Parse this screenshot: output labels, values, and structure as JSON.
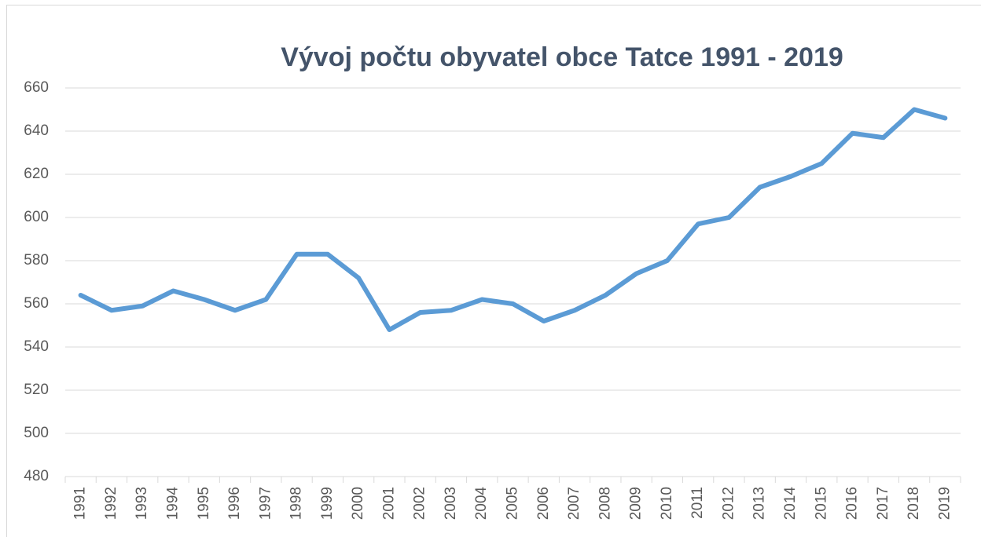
{
  "chart_data": {
    "type": "line",
    "title": "Vývoj počtu obyvatel obce Tatce 1991 - 2019",
    "categories": [
      "1991",
      "1992",
      "1993",
      "1994",
      "1995",
      "1996",
      "1997",
      "1998",
      "1999",
      "2000",
      "2001",
      "2002",
      "2003",
      "2004",
      "2005",
      "2006",
      "2007",
      "2008",
      "2009",
      "2010",
      "2011",
      "2012",
      "2013",
      "2014",
      "2015",
      "2016",
      "2017",
      "2018",
      "2019"
    ],
    "values": [
      564,
      557,
      559,
      566,
      562,
      557,
      562,
      583,
      583,
      572,
      548,
      556,
      557,
      562,
      560,
      552,
      557,
      564,
      574,
      580,
      597,
      600,
      614,
      619,
      625,
      639,
      637,
      650,
      646
    ],
    "color": "#5b9bd5",
    "ylim": [
      480,
      660
    ],
    "yticks": [
      480,
      500,
      520,
      540,
      560,
      580,
      600,
      620,
      640,
      660
    ],
    "grid": true
  }
}
